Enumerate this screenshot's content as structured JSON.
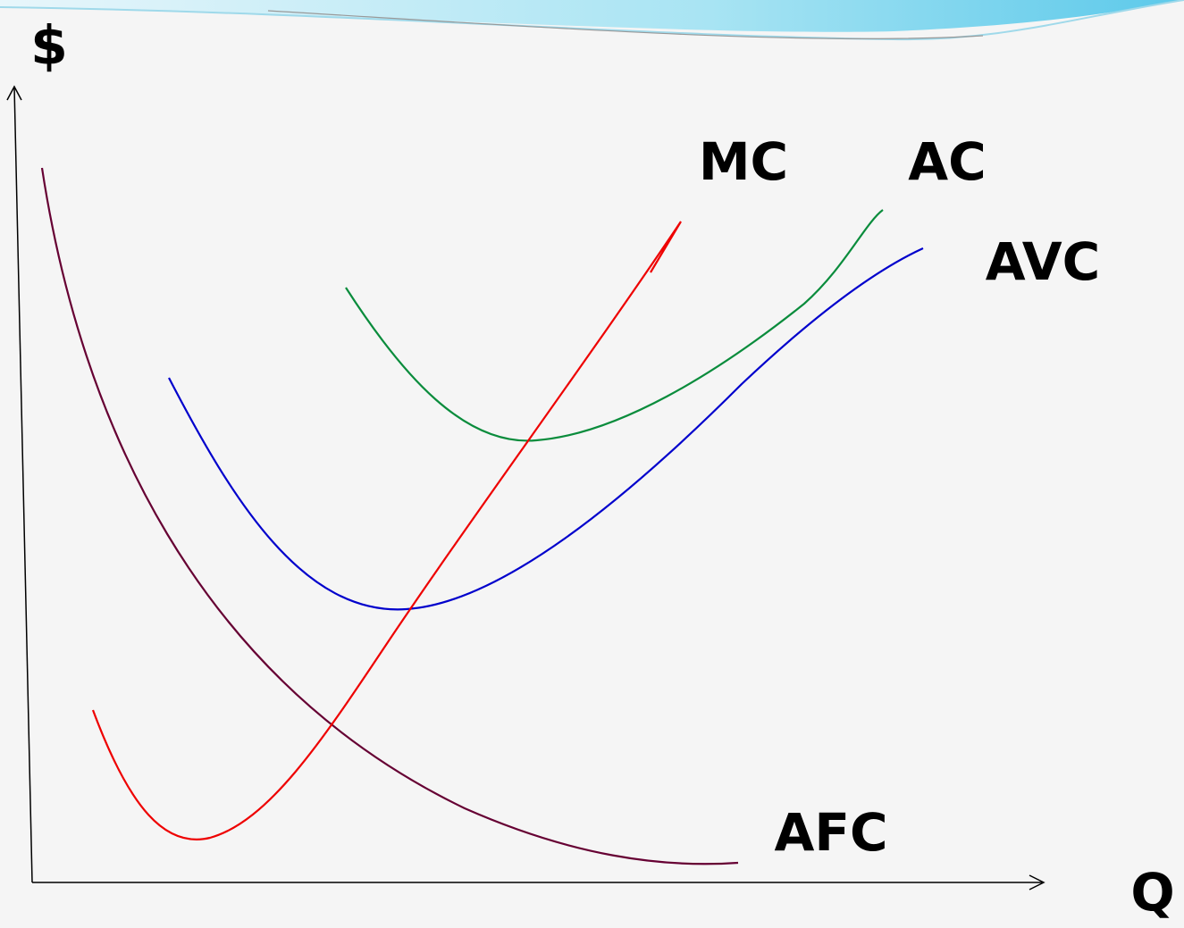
{
  "axes": {
    "y_label": "$",
    "x_label": "Q"
  },
  "curves": [
    {
      "label": "MC"
    },
    {
      "label": "AC"
    },
    {
      "label": "AVC"
    },
    {
      "label": "AFC"
    }
  ]
}
